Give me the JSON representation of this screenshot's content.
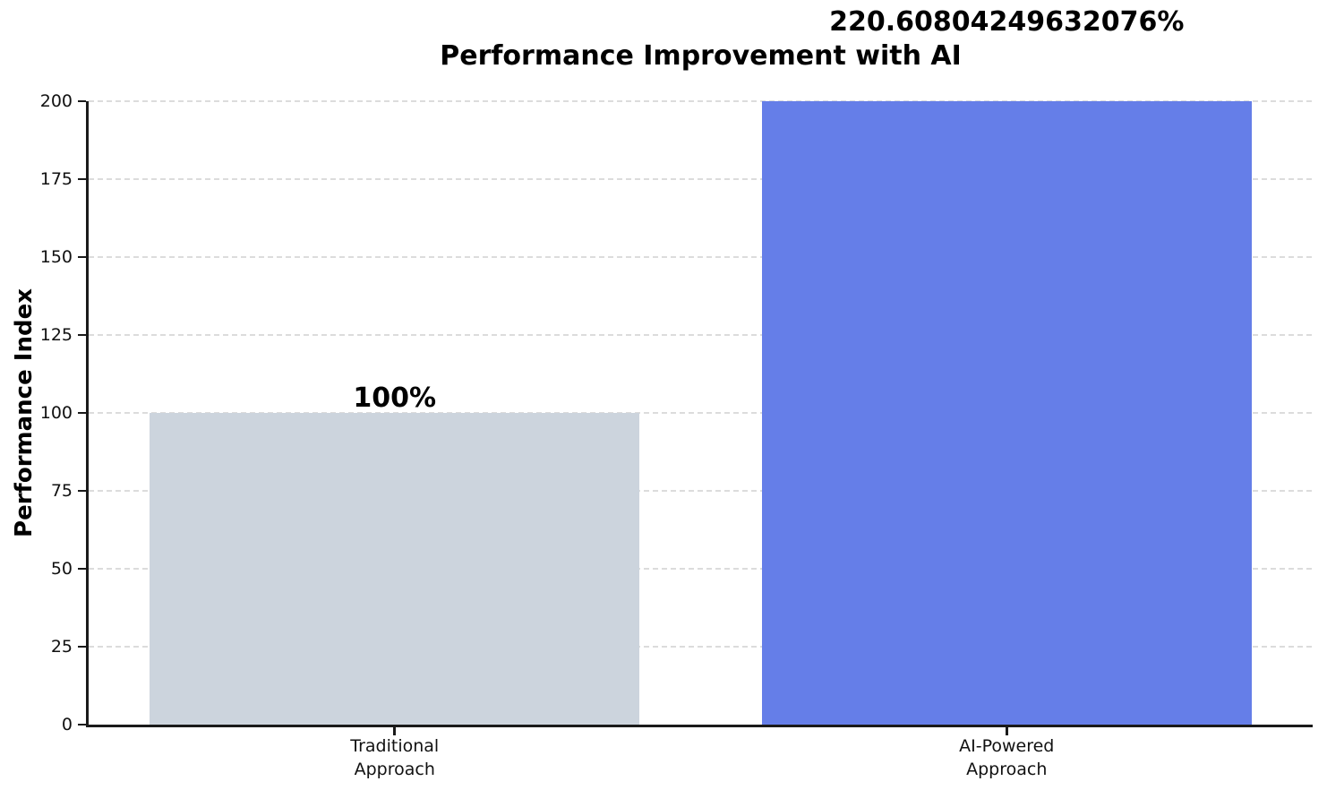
{
  "chart_data": {
    "type": "bar",
    "title": "Performance Improvement with AI",
    "xlabel": "",
    "ylabel": "Performance Index",
    "categories": [
      "Traditional Approach",
      "AI-Powered Approach"
    ],
    "category_lines": [
      [
        "Traditional",
        "Approach"
      ],
      [
        "AI-Powered",
        "Approach"
      ]
    ],
    "values": [
      100,
      220.60804249632076
    ],
    "bar_labels": [
      "100%",
      "220.60804249632076%"
    ],
    "bar_colors": [
      "#ccd4dd",
      "#657ee8"
    ],
    "ylim": [
      0,
      200
    ],
    "yticks": [
      0,
      25,
      50,
      75,
      100,
      125,
      150,
      175,
      200
    ],
    "grid": {
      "axis": "y",
      "style": "dashed",
      "color": "#dcdcdc"
    },
    "bar_clipped_at_ymax": "AI-Powered Approach"
  },
  "colors": {
    "background": "#ffffff",
    "spine": "#1a1a1a",
    "grid": "#dcdcdc",
    "text": "#000000",
    "traditional_bar": "#ccd4dd",
    "ai_bar": "#657ee8"
  }
}
